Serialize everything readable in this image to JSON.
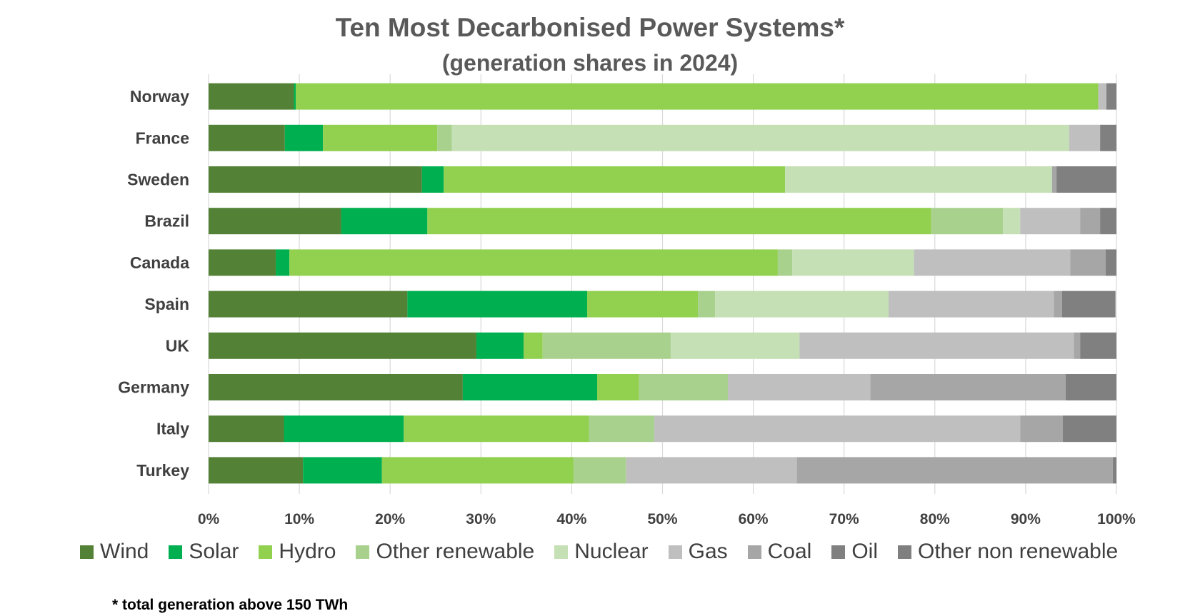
{
  "chart_data": {
    "type": "bar",
    "orientation": "horizontal",
    "stacked": true,
    "title": "Ten Most Decarbonised Power Systems*",
    "subtitle": "(generation shares in 2024)",
    "xlim": [
      0,
      100
    ],
    "x_ticks": [
      "0%",
      "10%",
      "20%",
      "30%",
      "40%",
      "50%",
      "60%",
      "70%",
      "80%",
      "90%",
      "100%"
    ],
    "grid": true,
    "legend_position": "bottom",
    "categories": [
      "Norway",
      "France",
      "Sweden",
      "Brazil",
      "Canada",
      "Spain",
      "UK",
      "Germany",
      "Italy",
      "Turkey"
    ],
    "series": [
      {
        "name": "Wind",
        "color": "#538135",
        "values": [
          9.4,
          8.4,
          23.5,
          14.6,
          7.4,
          21.9,
          29.5,
          28.0,
          8.3,
          10.4
        ]
      },
      {
        "name": "Solar",
        "color": "#00b050",
        "values": [
          0.2,
          4.2,
          2.4,
          9.5,
          1.5,
          19.8,
          5.2,
          14.8,
          13.2,
          8.7
        ]
      },
      {
        "name": "Hydro",
        "color": "#92d050",
        "values": [
          88.4,
          12.6,
          37.6,
          55.5,
          53.8,
          12.2,
          2.1,
          4.6,
          20.4,
          21.1
        ]
      },
      {
        "name": "Other renewable",
        "color": "#a9d18e",
        "values": [
          0.0,
          1.6,
          0.0,
          7.9,
          1.6,
          1.9,
          14.1,
          9.8,
          7.2,
          5.8
        ]
      },
      {
        "name": "Nuclear",
        "color": "#c5e0b4",
        "values": [
          0.0,
          68.0,
          29.4,
          1.9,
          13.4,
          19.1,
          14.2,
          0.0,
          0.0,
          0.0
        ]
      },
      {
        "name": "Gas",
        "color": "#bfbfbf",
        "values": [
          0.9,
          3.4,
          0.0,
          6.6,
          17.2,
          18.2,
          30.2,
          15.7,
          40.3,
          18.8
        ]
      },
      {
        "name": "Coal",
        "color": "#a6a6a6",
        "values": [
          0.0,
          0.0,
          0.5,
          2.2,
          3.9,
          0.9,
          0.7,
          21.5,
          4.7,
          34.8
        ]
      },
      {
        "name": "Oil",
        "color": "#808080",
        "values": [
          1.1,
          1.8,
          6.6,
          1.8,
          1.2,
          5.9,
          4.0,
          5.6,
          5.9,
          0.4
        ]
      },
      {
        "name": "Other non renewable",
        "color": "#7f7f7f",
        "values": [
          0.0,
          0.0,
          0.0,
          0.0,
          0.0,
          0.0,
          0.0,
          0.0,
          0.0,
          0.0
        ]
      }
    ],
    "footnote": "* total generation above 150 TWh"
  }
}
